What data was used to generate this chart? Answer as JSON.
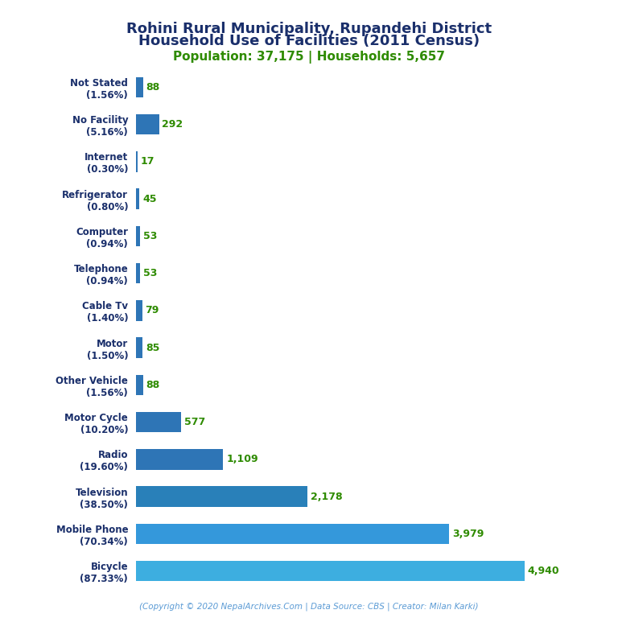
{
  "title_line1": "Rohini Rural Municipality, Rupandehi District",
  "title_line2": "Household Use of Facilities (2011 Census)",
  "subtitle": "Population: 37,175 | Households: 5,657",
  "footer": "(Copyright © 2020 NepalArchives.Com | Data Source: CBS | Creator: Milan Karki)",
  "categories": [
    "Not Stated\n(1.56%)",
    "No Facility\n(5.16%)",
    "Internet\n(0.30%)",
    "Refrigerator\n(0.80%)",
    "Computer\n(0.94%)",
    "Telephone\n(0.94%)",
    "Cable Tv\n(1.40%)",
    "Motor\n(1.50%)",
    "Other Vehicle\n(1.56%)",
    "Motor Cycle\n(10.20%)",
    "Radio\n(19.60%)",
    "Television\n(38.50%)",
    "Mobile Phone\n(70.34%)",
    "Bicycle\n(87.33%)"
  ],
  "values": [
    88,
    292,
    17,
    45,
    53,
    53,
    79,
    85,
    88,
    577,
    1109,
    2178,
    3979,
    4940
  ],
  "value_labels": [
    "88",
    "292",
    "17",
    "45",
    "53",
    "53",
    "79",
    "85",
    "88",
    "577",
    "1,109",
    "2,178",
    "3,979",
    "4,940"
  ],
  "bar_colors": [
    "#2e75b6",
    "#2e75b6",
    "#2e75b6",
    "#2e75b6",
    "#2e75b6",
    "#2e75b6",
    "#2e75b6",
    "#2e75b6",
    "#2e75b6",
    "#2e75b6",
    "#2e75b6",
    "#2980b9",
    "#3498db",
    "#3daee0"
  ],
  "title_color": "#1a2f6b",
  "subtitle_color": "#2e8b00",
  "footer_color": "#5b9bd5",
  "label_color": "#2e8b00",
  "yticklabel_color": "#1a2f6b",
  "background_color": "#ffffff",
  "xlim": [
    0,
    5500
  ]
}
